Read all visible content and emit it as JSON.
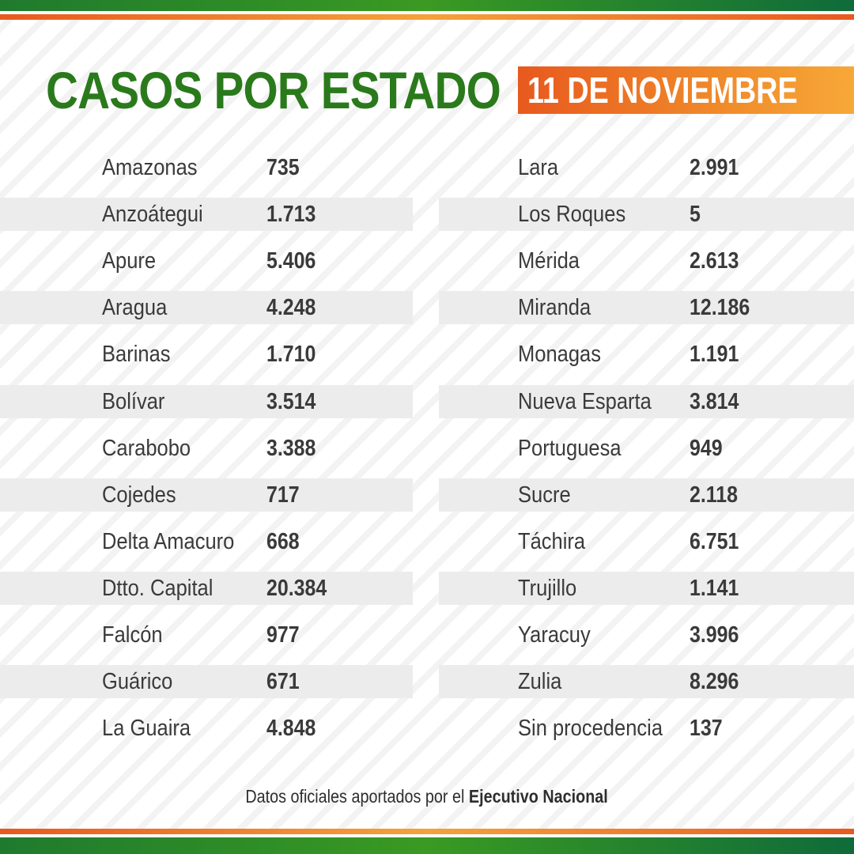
{
  "header": {
    "title": "CASOS POR ESTADO",
    "date": "11 DE NOVIEMBRE"
  },
  "left_table": [
    {
      "state": "Amazonas",
      "cases": "735"
    },
    {
      "state": "Anzoátegui",
      "cases": "1.713"
    },
    {
      "state": "Apure",
      "cases": "5.406"
    },
    {
      "state": "Aragua",
      "cases": "4.248"
    },
    {
      "state": "Barinas",
      "cases": "1.710"
    },
    {
      "state": "Bolívar",
      "cases": "3.514"
    },
    {
      "state": "Carabobo",
      "cases": "3.388"
    },
    {
      "state": "Cojedes",
      "cases": "717"
    },
    {
      "state": "Delta Amacuro",
      "cases": "668"
    },
    {
      "state": "Dtto. Capital",
      "cases": "20.384"
    },
    {
      "state": "Falcón",
      "cases": "977"
    },
    {
      "state": "Guárico",
      "cases": "671"
    },
    {
      "state": "La Guaira",
      "cases": "4.848"
    }
  ],
  "right_table": [
    {
      "state": "Lara",
      "cases": "2.991"
    },
    {
      "state": "Los Roques",
      "cases": "5"
    },
    {
      "state": "Mérida",
      "cases": "2.613"
    },
    {
      "state": "Miranda",
      "cases": "12.186"
    },
    {
      "state": "Monagas",
      "cases": "1.191"
    },
    {
      "state": "Nueva Esparta",
      "cases": "3.814"
    },
    {
      "state": "Portuguesa",
      "cases": "949"
    },
    {
      "state": "Sucre",
      "cases": "2.118"
    },
    {
      "state": "Táchira",
      "cases": "6.751"
    },
    {
      "state": "Trujillo",
      "cases": "1.141"
    },
    {
      "state": "Yaracuy",
      "cases": "3.996"
    },
    {
      "state": "Zulia",
      "cases": "8.296"
    },
    {
      "state": "Sin procedencia",
      "cases": "137"
    }
  ],
  "footer": {
    "prefix": "Datos oficiales aportados por el ",
    "source": "Ejecutivo Nacional"
  },
  "colors": {
    "title_green": "#2a7a1c",
    "badge_orange": "#e8591e",
    "text_gray": "#3a3a3a",
    "band_gray": "#ececec"
  }
}
